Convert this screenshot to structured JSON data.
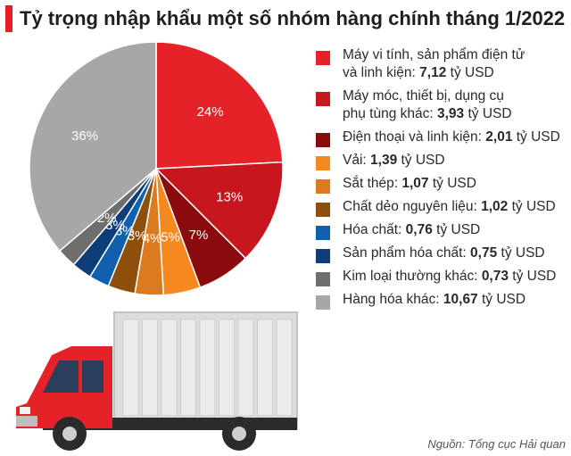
{
  "title": "Tỷ trọng nhập khẩu một số nhóm hàng chính tháng 1/2022",
  "source": "Nguồn: Tổng cục Hải quan",
  "chart_data": {
    "type": "pie",
    "title": "Tỷ trọng nhập khẩu một số nhóm hàng chính tháng 1/2022",
    "unit": "tỷ USD",
    "slices": [
      {
        "label_lines": [
          "Máy vi tính, sản phẩm điện tử",
          "và linh kiện: "
        ],
        "value_text": "7,12",
        "value": 7.12,
        "percent_label": "24%",
        "color": "#e52228"
      },
      {
        "label_lines": [
          "Máy móc, thiết bị, dụng cụ",
          "phụ tùng  khác: "
        ],
        "value_text": "3,93",
        "value": 3.93,
        "percent_label": "13%",
        "color": "#c8161e"
      },
      {
        "label_lines": [
          "Điện thoại và linh kiện: "
        ],
        "value_text": "2,01",
        "value": 2.01,
        "percent_label": "7%",
        "color": "#8b0a0e"
      },
      {
        "label_lines": [
          "Vải: "
        ],
        "value_text": "1,39",
        "value": 1.39,
        "percent_label": "5%",
        "color": "#f5881f"
      },
      {
        "label_lines": [
          "Sắt thép: "
        ],
        "value_text": "1,07",
        "value": 1.07,
        "percent_label": "4%",
        "color": "#dc7a22"
      },
      {
        "label_lines": [
          "Chất dẻo nguyên liệu: "
        ],
        "value_text": "1,02",
        "value": 1.02,
        "percent_label": "3%",
        "color": "#8f4f0c"
      },
      {
        "label_lines": [
          "Hóa chất: "
        ],
        "value_text": "0,76",
        "value": 0.76,
        "percent_label": "3%",
        "color": "#1160ae"
      },
      {
        "label_lines": [
          "Sản phẩm hóa chất: "
        ],
        "value_text": "0,75",
        "value": 0.75,
        "percent_label": "3%",
        "color": "#0f3d7a"
      },
      {
        "label_lines": [
          "Kim loại thường khác: "
        ],
        "value_text": "0,73",
        "value": 0.73,
        "percent_label": "2%",
        "color": "#6f6f6f"
      },
      {
        "label_lines": [
          "Hàng hóa khác: "
        ],
        "value_text": "10,67",
        "value": 10.67,
        "percent_label": "36%",
        "color": "#a7a7a9"
      }
    ]
  }
}
